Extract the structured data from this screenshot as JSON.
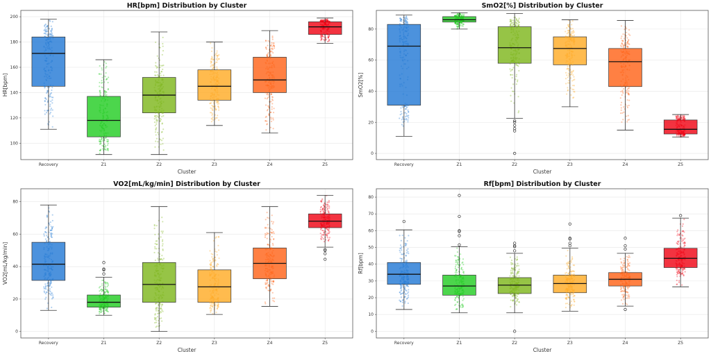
{
  "chart_data": [
    {
      "type": "box",
      "title": "HR[bpm] Distribution by Cluster",
      "xlabel": "Cluster",
      "ylabel": "HR[bpm]",
      "ylim": [
        87,
        205
      ],
      "yticks": [
        100,
        120,
        140,
        160,
        180,
        200
      ],
      "grid": true,
      "categories": [
        "Recovery",
        "Z1",
        "Z2",
        "Z3",
        "Z4",
        "Z5"
      ],
      "colors": [
        "#1f77d4",
        "#1fcc1f",
        "#7cb518",
        "#ffaa22",
        "#ff6014",
        "#f00010"
      ],
      "boxes": [
        {
          "whisker_low": 111,
          "q1": 145,
          "median": 171,
          "q3": 184,
          "whisker_high": 198,
          "outliers": []
        },
        {
          "whisker_low": 91,
          "q1": 105,
          "median": 118,
          "q3": 137,
          "whisker_high": 166,
          "outliers": []
        },
        {
          "whisker_low": 91,
          "q1": 124,
          "median": 138,
          "q3": 152,
          "whisker_high": 188,
          "outliers": []
        },
        {
          "whisker_low": 114,
          "q1": 134,
          "median": 145,
          "q3": 158,
          "whisker_high": 180,
          "outliers": []
        },
        {
          "whisker_low": 108,
          "q1": 140,
          "median": 150,
          "q3": 168,
          "whisker_high": 189,
          "outliers": []
        },
        {
          "whisker_low": 179,
          "q1": 186,
          "median": 192,
          "q3": 196,
          "whisker_high": 199,
          "outliers": []
        }
      ]
    },
    {
      "type": "box",
      "title": "SmO2[%] Distribution by Cluster",
      "xlabel": "Cluster",
      "ylabel": "SmO2[%]",
      "ylim": [
        -4,
        92
      ],
      "yticks": [
        0,
        20,
        40,
        60,
        80
      ],
      "grid": true,
      "categories": [
        "Recovery",
        "Z1",
        "Z2",
        "Z3",
        "Z4",
        "Z5"
      ],
      "colors": [
        "#1f77d4",
        "#1fcc1f",
        "#7cb518",
        "#ffaa22",
        "#ff6014",
        "#f00010"
      ],
      "boxes": [
        {
          "whisker_low": 11,
          "q1": 31,
          "median": 69,
          "q3": 83,
          "whisker_high": 89,
          "outliers": []
        },
        {
          "whisker_low": 80,
          "q1": 84.5,
          "median": 86,
          "q3": 88,
          "whisker_high": 90.5,
          "outliers": []
        },
        {
          "whisker_low": 22.5,
          "q1": 58,
          "median": 68,
          "q3": 81.5,
          "whisker_high": 90,
          "outliers": [
            21,
            20,
            18,
            16,
            14.5,
            0
          ]
        },
        {
          "whisker_low": 30,
          "q1": 57,
          "median": 67.5,
          "q3": 75,
          "whisker_high": 86,
          "outliers": []
        },
        {
          "whisker_low": 15,
          "q1": 43,
          "median": 59,
          "q3": 67.5,
          "whisker_high": 85.5,
          "outliers": []
        },
        {
          "whisker_low": 10.5,
          "q1": 12.5,
          "median": 15.5,
          "q3": 21.5,
          "whisker_high": 25,
          "outliers": []
        }
      ]
    },
    {
      "type": "box",
      "title": "VO2[mL/kg/min] Distribution by Cluster",
      "xlabel": "Cluster",
      "ylabel": "VO2[mL/kg/min]",
      "ylim": [
        -4,
        88
      ],
      "yticks": [
        0,
        20,
        40,
        60,
        80
      ],
      "grid": true,
      "categories": [
        "Recovery",
        "Z1",
        "Z2",
        "Z3",
        "Z4",
        "Z5"
      ],
      "colors": [
        "#1f77d4",
        "#1fcc1f",
        "#7cb518",
        "#ffaa22",
        "#ff6014",
        "#f00010"
      ],
      "boxes": [
        {
          "whisker_low": 13,
          "q1": 31.5,
          "median": 41.5,
          "q3": 55,
          "whisker_high": 78,
          "outliers": []
        },
        {
          "whisker_low": 10,
          "q1": 15,
          "median": 18,
          "q3": 22.5,
          "whisker_high": 33.5,
          "outliers": [
            42.5,
            38.5,
            38,
            35.5
          ]
        },
        {
          "whisker_low": 0,
          "q1": 18,
          "median": 29,
          "q3": 42.5,
          "whisker_high": 77,
          "outliers": []
        },
        {
          "whisker_low": 10.5,
          "q1": 18,
          "median": 27.5,
          "q3": 38,
          "whisker_high": 61,
          "outliers": []
        },
        {
          "whisker_low": 15.5,
          "q1": 32.5,
          "median": 42,
          "q3": 51.5,
          "whisker_high": 77,
          "outliers": []
        },
        {
          "whisker_low": 52,
          "q1": 64,
          "median": 68,
          "q3": 72.5,
          "whisker_high": 84,
          "outliers": [
            50.5,
            50,
            48,
            44.5
          ]
        }
      ]
    },
    {
      "type": "box",
      "title": "Rf[bpm] Distribution by Cluster",
      "xlabel": "Cluster",
      "ylabel": "Rf[bpm]",
      "ylim": [
        -4,
        85
      ],
      "yticks": [
        0,
        10,
        20,
        30,
        40,
        50,
        60,
        70,
        80
      ],
      "grid": true,
      "categories": [
        "Recovery",
        "Z1",
        "Z2",
        "Z3",
        "Z4",
        "Z5"
      ],
      "colors": [
        "#1f77d4",
        "#1fcc1f",
        "#7cb518",
        "#ffaa22",
        "#ff6014",
        "#f00010"
      ],
      "boxes": [
        {
          "whisker_low": 13,
          "q1": 28,
          "median": 34,
          "q3": 41,
          "whisker_high": 60.5,
          "outliers": [
            65.5
          ]
        },
        {
          "whisker_low": 11,
          "q1": 21.5,
          "median": 27,
          "q3": 33.5,
          "whisker_high": 50.5,
          "outliers": [
            81,
            68.5,
            60,
            59.5,
            57,
            51.5
          ]
        },
        {
          "whisker_low": 11,
          "q1": 22.5,
          "median": 27.5,
          "q3": 32,
          "whisker_high": 46.5,
          "outliers": [
            52.5,
            51,
            50.5,
            48,
            0
          ]
        },
        {
          "whisker_low": 12,
          "q1": 23,
          "median": 28.5,
          "q3": 33.5,
          "whisker_high": 49.5,
          "outliers": [
            64,
            55.5,
            55,
            52.5,
            51
          ]
        },
        {
          "whisker_low": 15,
          "q1": 27,
          "median": 31,
          "q3": 35,
          "whisker_high": 46.5,
          "outliers": [
            55.5,
            51,
            49,
            13
          ]
        },
        {
          "whisker_low": 26.5,
          "q1": 38,
          "median": 43.5,
          "q3": 49.5,
          "whisker_high": 67.5,
          "outliers": [
            69
          ]
        }
      ]
    }
  ]
}
